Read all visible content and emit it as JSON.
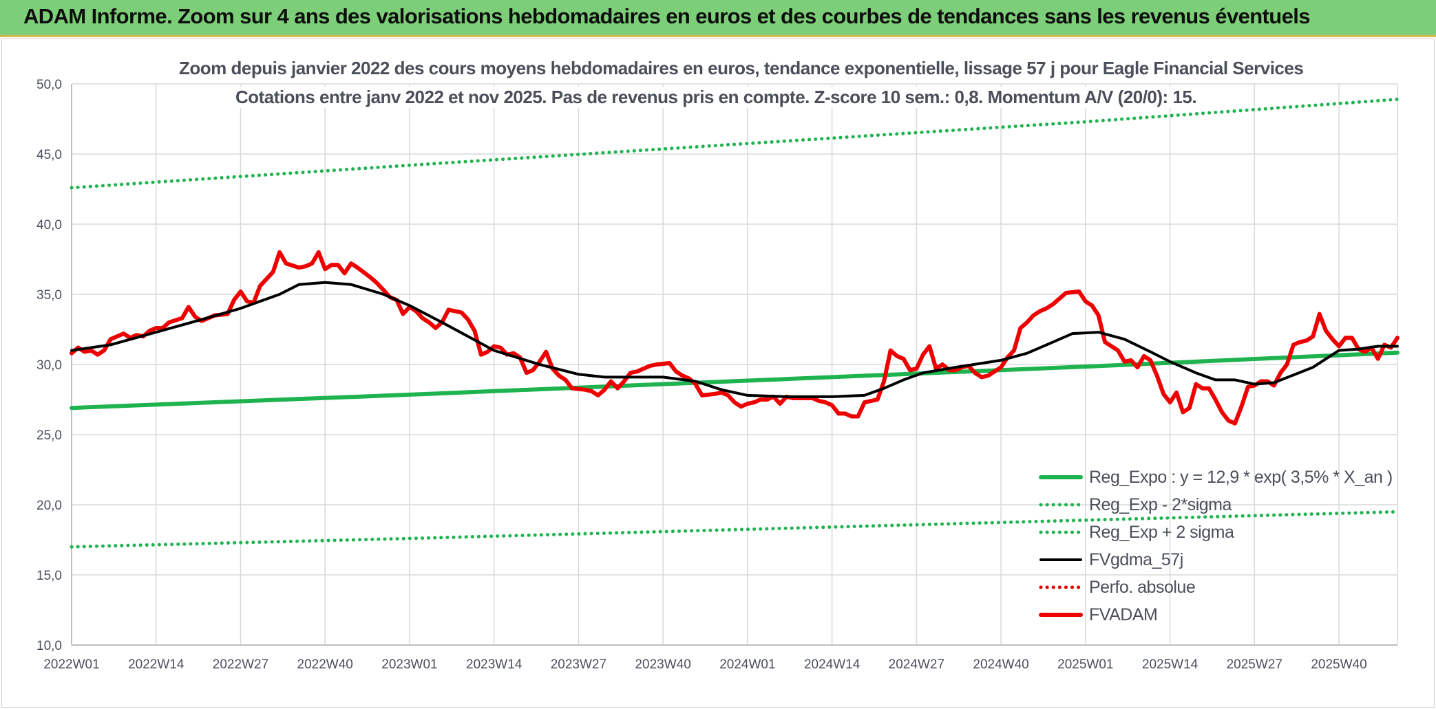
{
  "header": {
    "title": "ADAM Informe. Zoom sur 4 ans des valorisations hebdomadaires en euros et des courbes de tendances sans les revenus éventuels"
  },
  "colors": {
    "banner_bg": "#7ccf78",
    "trend": "#1fb350",
    "band": "#1fb350",
    "smooth": "#000000",
    "perf": "#e00000",
    "price": "#ee0000",
    "grid": "#d9d9d9"
  },
  "chart_data": {
    "type": "line",
    "title": "Zoom depuis janvier 2022 des cours moyens hebdomadaires en euros, tendance exponentielle, lissage 57 j pour Eagle Financial Services",
    "subtitle": "Cotations entre janv 2022 et nov 2025. Pas de revenus pris en compte. Z-score 10 sem.: 0,8. Momentum A/V (20/0): 15.",
    "xlabel": "",
    "ylabel": "",
    "ylim": [
      10,
      50
    ],
    "y_ticks": [
      "10,0",
      "15,0",
      "20,0",
      "25,0",
      "30,0",
      "35,0",
      "40,0",
      "45,0",
      "50,0"
    ],
    "y_tick_values": [
      10,
      15,
      20,
      25,
      30,
      35,
      40,
      45,
      50
    ],
    "x_range": [
      0,
      204
    ],
    "x_ticks": [
      "2022W01",
      "2022W14",
      "2022W27",
      "2022W40",
      "2023W01",
      "2023W14",
      "2023W27",
      "2023W40",
      "2024W01",
      "2024W14",
      "2024W27",
      "2024W40",
      "2025W01",
      "2025W14",
      "2025W27",
      "2025W40"
    ],
    "x_tick_values": [
      0,
      13,
      26,
      39,
      52,
      65,
      78,
      91,
      104,
      117,
      130,
      143,
      156,
      169,
      182,
      195
    ],
    "grid": true,
    "legend_position": "bottom-right",
    "series": [
      {
        "name": "Reg_Expo : y = 12,9 * exp( 3,5% *  X_an )",
        "style": "solid-thick",
        "color": "#1fb350",
        "points": [
          [
            0,
            26.9
          ],
          [
            52,
            27.85
          ],
          [
            104,
            28.85
          ],
          [
            156,
            29.85
          ],
          [
            204,
            30.85
          ]
        ]
      },
      {
        "name": "Reg_Exp - 2*sigma",
        "style": "dotted",
        "color": "#1fb350",
        "points": [
          [
            0,
            17.0
          ],
          [
            52,
            17.6
          ],
          [
            104,
            18.25
          ],
          [
            156,
            18.9
          ],
          [
            204,
            19.5
          ]
        ]
      },
      {
        "name": "Reg_Exp + 2 sigma",
        "style": "dotted",
        "color": "#1fb350",
        "points": [
          [
            0,
            42.6
          ],
          [
            52,
            44.2
          ],
          [
            104,
            45.75
          ],
          [
            156,
            47.3
          ],
          [
            204,
            48.9
          ]
        ]
      },
      {
        "name": "FVgdma_57j",
        "style": "solid",
        "color": "#000000",
        "points": [
          [
            0,
            31.0
          ],
          [
            6,
            31.4
          ],
          [
            13,
            32.3
          ],
          [
            20,
            33.2
          ],
          [
            26,
            34.0
          ],
          [
            32,
            35.0
          ],
          [
            35,
            35.7
          ],
          [
            39,
            35.85
          ],
          [
            43,
            35.7
          ],
          [
            48,
            35.0
          ],
          [
            52,
            34.2
          ],
          [
            57,
            33.0
          ],
          [
            65,
            31.0
          ],
          [
            72,
            30.0
          ],
          [
            78,
            29.3
          ],
          [
            82,
            29.1
          ],
          [
            91,
            29.1
          ],
          [
            96,
            28.8
          ],
          [
            100,
            28.2
          ],
          [
            104,
            27.8
          ],
          [
            110,
            27.7
          ],
          [
            117,
            27.7
          ],
          [
            122,
            27.8
          ],
          [
            125,
            28.3
          ],
          [
            128,
            28.9
          ],
          [
            131,
            29.4
          ],
          [
            136,
            29.8
          ],
          [
            143,
            30.3
          ],
          [
            147,
            30.8
          ],
          [
            151,
            31.6
          ],
          [
            154,
            32.2
          ],
          [
            158,
            32.3
          ],
          [
            162,
            31.8
          ],
          [
            166,
            30.9
          ],
          [
            169,
            30.2
          ],
          [
            173,
            29.4
          ],
          [
            176,
            28.9
          ],
          [
            179,
            28.9
          ],
          [
            182,
            28.6
          ],
          [
            185,
            28.7
          ],
          [
            191,
            29.8
          ],
          [
            195,
            31.0
          ],
          [
            198,
            31.1
          ],
          [
            201,
            31.3
          ],
          [
            204,
            31.3
          ]
        ]
      },
      {
        "name": "Perfo. absolue",
        "style": "dotted",
        "color": "#e00000",
        "points": []
      },
      {
        "name": "FVADAM",
        "style": "solid-thick",
        "color": "#ee0000",
        "points": [
          [
            0,
            30.8
          ],
          [
            1,
            31.2
          ],
          [
            2,
            30.9
          ],
          [
            3,
            31.0
          ],
          [
            4,
            30.7
          ],
          [
            5,
            31.0
          ],
          [
            6,
            31.8
          ],
          [
            8,
            32.2
          ],
          [
            9,
            31.9
          ],
          [
            10,
            32.1
          ],
          [
            11,
            32.0
          ],
          [
            12,
            32.4
          ],
          [
            13,
            32.6
          ],
          [
            14,
            32.6
          ],
          [
            15,
            33.0
          ],
          [
            17,
            33.3
          ],
          [
            18,
            34.1
          ],
          [
            19,
            33.4
          ],
          [
            20,
            33.1
          ],
          [
            21,
            33.3
          ],
          [
            22,
            33.5
          ],
          [
            24,
            33.6
          ],
          [
            25,
            34.6
          ],
          [
            26,
            35.2
          ],
          [
            27,
            34.5
          ],
          [
            28,
            34.4
          ],
          [
            29,
            35.6
          ],
          [
            31,
            36.6
          ],
          [
            32,
            38.0
          ],
          [
            33,
            37.2
          ],
          [
            35,
            36.9
          ],
          [
            36,
            37.0
          ],
          [
            37,
            37.2
          ],
          [
            38,
            38.0
          ],
          [
            39,
            36.8
          ],
          [
            40,
            37.1
          ],
          [
            41,
            37.1
          ],
          [
            42,
            36.5
          ],
          [
            43,
            37.2
          ],
          [
            44,
            36.9
          ],
          [
            46,
            36.2
          ],
          [
            47,
            35.8
          ],
          [
            48,
            35.3
          ],
          [
            49,
            34.8
          ],
          [
            50,
            34.6
          ],
          [
            51,
            33.6
          ],
          [
            52,
            34.1
          ],
          [
            53,
            33.8
          ],
          [
            54,
            33.3
          ],
          [
            55,
            33.0
          ],
          [
            56,
            32.6
          ],
          [
            57,
            33.0
          ],
          [
            58,
            33.9
          ],
          [
            59,
            33.8
          ],
          [
            60,
            33.7
          ],
          [
            61,
            33.2
          ],
          [
            62,
            32.4
          ],
          [
            63,
            30.7
          ],
          [
            64,
            30.9
          ],
          [
            65,
            31.3
          ],
          [
            66,
            31.2
          ],
          [
            67,
            30.7
          ],
          [
            68,
            30.8
          ],
          [
            69,
            30.5
          ],
          [
            70,
            29.4
          ],
          [
            71,
            29.6
          ],
          [
            72,
            30.2
          ],
          [
            73,
            30.9
          ],
          [
            74,
            29.7
          ],
          [
            75,
            29.2
          ],
          [
            76,
            28.9
          ],
          [
            77,
            28.3
          ],
          [
            79,
            28.2
          ],
          [
            80,
            28.1
          ],
          [
            81,
            27.8
          ],
          [
            82,
            28.2
          ],
          [
            83,
            28.8
          ],
          [
            84,
            28.3
          ],
          [
            85,
            28.8
          ],
          [
            86,
            29.4
          ],
          [
            87,
            29.5
          ],
          [
            88,
            29.7
          ],
          [
            89,
            29.9
          ],
          [
            90,
            30.0
          ],
          [
            92,
            30.1
          ],
          [
            93,
            29.5
          ],
          [
            94,
            29.2
          ],
          [
            95,
            29.0
          ],
          [
            96,
            28.6
          ],
          [
            97,
            27.8
          ],
          [
            99,
            27.9
          ],
          [
            100,
            28.0
          ],
          [
            101,
            27.8
          ],
          [
            102,
            27.3
          ],
          [
            103,
            27.0
          ],
          [
            104,
            27.2
          ],
          [
            105,
            27.3
          ],
          [
            106,
            27.5
          ],
          [
            107,
            27.5
          ],
          [
            108,
            27.7
          ],
          [
            109,
            27.2
          ],
          [
            110,
            27.7
          ],
          [
            111,
            27.6
          ],
          [
            112,
            27.6
          ],
          [
            114,
            27.6
          ],
          [
            115,
            27.4
          ],
          [
            116,
            27.3
          ],
          [
            117,
            27.1
          ],
          [
            118,
            26.5
          ],
          [
            119,
            26.5
          ],
          [
            120,
            26.3
          ],
          [
            121,
            26.3
          ],
          [
            122,
            27.3
          ],
          [
            124,
            27.5
          ],
          [
            125,
            28.8
          ],
          [
            126,
            31.0
          ],
          [
            127,
            30.6
          ],
          [
            128,
            30.4
          ],
          [
            129,
            29.6
          ],
          [
            130,
            29.7
          ],
          [
            131,
            30.7
          ],
          [
            132,
            31.3
          ],
          [
            133,
            29.7
          ],
          [
            134,
            30.0
          ],
          [
            135,
            29.6
          ],
          [
            136,
            29.6
          ],
          [
            137,
            29.8
          ],
          [
            138,
            29.9
          ],
          [
            139,
            29.4
          ],
          [
            140,
            29.1
          ],
          [
            141,
            29.2
          ],
          [
            142,
            29.5
          ],
          [
            143,
            29.8
          ],
          [
            144,
            30.5
          ],
          [
            145,
            31.0
          ],
          [
            146,
            32.6
          ],
          [
            147,
            33.0
          ],
          [
            148,
            33.5
          ],
          [
            149,
            33.8
          ],
          [
            150,
            34.0
          ],
          [
            151,
            34.3
          ],
          [
            152,
            34.7
          ],
          [
            153,
            35.1
          ],
          [
            155,
            35.2
          ],
          [
            156,
            34.5
          ],
          [
            157,
            34.2
          ],
          [
            158,
            33.5
          ],
          [
            159,
            31.6
          ],
          [
            160,
            31.3
          ],
          [
            161,
            31.0
          ],
          [
            162,
            30.2
          ],
          [
            163,
            30.3
          ],
          [
            164,
            29.8
          ],
          [
            165,
            30.6
          ],
          [
            166,
            30.3
          ],
          [
            167,
            29.2
          ],
          [
            168,
            27.9
          ],
          [
            169,
            27.3
          ],
          [
            170,
            28.0
          ],
          [
            171,
            26.6
          ],
          [
            172,
            26.9
          ],
          [
            173,
            28.6
          ],
          [
            174,
            28.3
          ],
          [
            175,
            28.3
          ],
          [
            176,
            27.5
          ],
          [
            177,
            26.6
          ],
          [
            178,
            26.0
          ],
          [
            179,
            25.8
          ],
          [
            180,
            27.0
          ],
          [
            181,
            28.4
          ],
          [
            182,
            28.5
          ],
          [
            183,
            28.8
          ],
          [
            184,
            28.8
          ],
          [
            185,
            28.5
          ],
          [
            186,
            29.4
          ],
          [
            187,
            30.0
          ],
          [
            188,
            31.4
          ],
          [
            189,
            31.6
          ],
          [
            190,
            31.7
          ],
          [
            191,
            32.0
          ],
          [
            192,
            33.6
          ],
          [
            193,
            32.4
          ],
          [
            194,
            31.8
          ],
          [
            195,
            31.3
          ],
          [
            196,
            31.9
          ],
          [
            197,
            31.9
          ],
          [
            198,
            31.1
          ],
          [
            199,
            30.9
          ],
          [
            200,
            31.2
          ],
          [
            201,
            30.4
          ],
          [
            202,
            31.4
          ],
          [
            203,
            31.2
          ],
          [
            204,
            31.9
          ]
        ]
      }
    ]
  }
}
